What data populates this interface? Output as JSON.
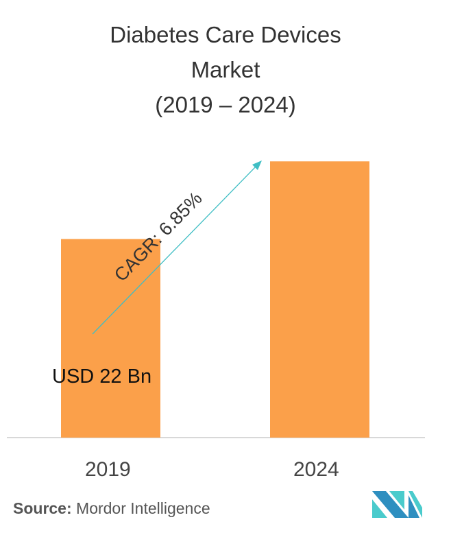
{
  "title_lines": [
    "Diabetes Care Devices",
    "Market",
    "(2019 – 2024)"
  ],
  "source": {
    "label": "Source:",
    "value": "Mordor Intelligence"
  },
  "colors": {
    "bar": "#FBA04A",
    "arrow": "#3FBEC4",
    "logo_dark": "#2E8FC0",
    "logo_light": "#4ACBCC"
  },
  "chart_data": {
    "type": "bar",
    "categories": [
      "2019",
      "2024"
    ],
    "values": [
      22,
      30.6
    ],
    "ylim": [
      0,
      31
    ],
    "data_labels": [
      "USD 22 Bn",
      ""
    ],
    "annotation": "CAGR: 6.85%",
    "title": "Diabetes Care Devices Market (2019 – 2024)",
    "xlabel": "",
    "ylabel": ""
  }
}
